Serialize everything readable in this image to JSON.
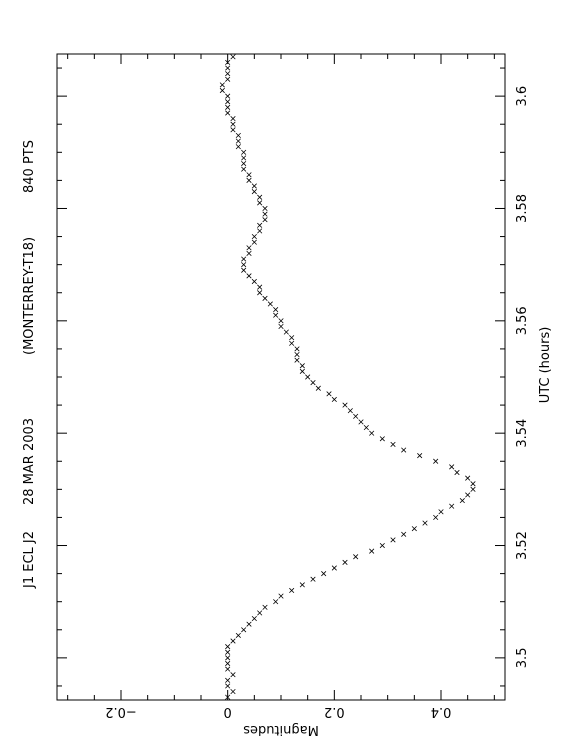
{
  "chart_data": {
    "type": "scatter",
    "title": "J1 ECL J2    28 MAR 2003    (MONTERREY-T18)    840 PTS",
    "title_parts": [
      "J1 ECL J2",
      "28 MAR 2003",
      "(MONTERREY-T18)",
      "840 PTS"
    ],
    "xlabel": "UTC (hours)",
    "ylabel": "Magnitudes",
    "x_ticks": [
      "3.5",
      "3.52",
      "3.54",
      "3.56",
      "3.58",
      "3.6"
    ],
    "y_ticks": [
      "-0.2",
      "0",
      "0.2",
      "0.4"
    ],
    "xlim": [
      3.4925,
      3.6075
    ],
    "ylim": [
      -0.32,
      0.52
    ],
    "y_inverted": true,
    "orientation": "rotated 90 degrees, x axis runs vertically",
    "grid": false,
    "marker": "x",
    "point_count": 840,
    "series": [
      {
        "x": [
          3.493,
          3.494,
          3.495,
          3.496,
          3.497,
          3.498,
          3.499,
          3.5,
          3.501,
          3.502,
          3.503,
          3.504,
          3.505,
          3.506,
          3.507,
          3.508,
          3.509,
          3.51,
          3.511,
          3.512,
          3.513,
          3.514,
          3.515,
          3.516,
          3.517,
          3.518,
          3.519,
          3.52,
          3.521,
          3.522,
          3.523,
          3.524,
          3.525,
          3.526,
          3.527,
          3.528,
          3.529,
          3.53,
          3.531,
          3.532,
          3.533,
          3.534,
          3.535,
          3.536,
          3.537,
          3.538,
          3.539,
          3.54,
          3.541,
          3.542,
          3.543,
          3.544,
          3.545,
          3.546,
          3.547,
          3.548,
          3.549,
          3.55,
          3.551,
          3.552,
          3.553,
          3.554,
          3.555,
          3.556,
          3.557,
          3.558,
          3.559,
          3.56,
          3.561,
          3.562,
          3.563,
          3.564,
          3.565,
          3.566,
          3.567,
          3.568,
          3.569,
          3.57,
          3.571,
          3.572,
          3.573,
          3.574,
          3.575,
          3.576,
          3.577,
          3.578,
          3.579,
          3.58,
          3.581,
          3.582,
          3.583,
          3.584,
          3.585,
          3.586,
          3.587,
          3.588,
          3.589,
          3.59,
          3.591,
          3.592,
          3.593,
          3.594,
          3.595,
          3.596,
          3.597,
          3.598,
          3.599,
          3.6,
          3.601,
          3.602,
          3.603,
          3.604,
          3.605,
          3.606,
          3.607
        ],
        "y": [
          0.0,
          0.01,
          0.0,
          0.0,
          0.01,
          0.0,
          0.0,
          0.0,
          0.0,
          0.0,
          0.01,
          0.02,
          0.03,
          0.04,
          0.05,
          0.06,
          0.07,
          0.09,
          0.1,
          0.12,
          0.14,
          0.16,
          0.18,
          0.2,
          0.22,
          0.24,
          0.27,
          0.29,
          0.31,
          0.33,
          0.35,
          0.37,
          0.39,
          0.4,
          0.42,
          0.44,
          0.45,
          0.46,
          0.46,
          0.45,
          0.43,
          0.42,
          0.39,
          0.36,
          0.33,
          0.31,
          0.29,
          0.27,
          0.26,
          0.25,
          0.24,
          0.23,
          0.22,
          0.2,
          0.19,
          0.17,
          0.16,
          0.15,
          0.14,
          0.14,
          0.13,
          0.13,
          0.13,
          0.12,
          0.12,
          0.11,
          0.1,
          0.1,
          0.09,
          0.09,
          0.08,
          0.07,
          0.06,
          0.06,
          0.05,
          0.04,
          0.03,
          0.03,
          0.03,
          0.04,
          0.04,
          0.05,
          0.05,
          0.06,
          0.06,
          0.07,
          0.07,
          0.07,
          0.06,
          0.06,
          0.05,
          0.05,
          0.04,
          0.04,
          0.03,
          0.03,
          0.03,
          0.03,
          0.02,
          0.02,
          0.02,
          0.01,
          0.01,
          0.01,
          0.0,
          0.0,
          0.0,
          0.0,
          -0.01,
          -0.01,
          0.0,
          0.0,
          0.0,
          0.0,
          0.01
        ]
      }
    ]
  }
}
